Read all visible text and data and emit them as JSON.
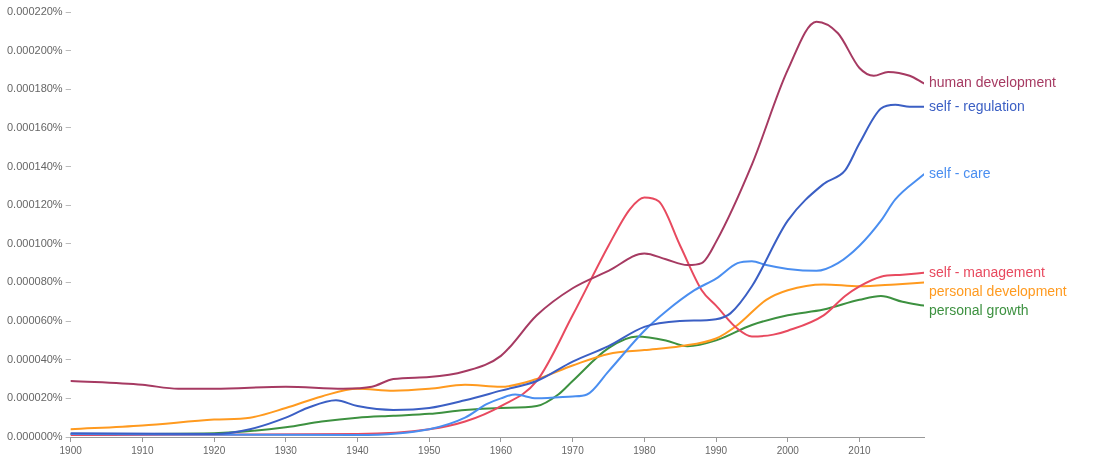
{
  "chart_data": {
    "type": "line",
    "xlim": [
      1900,
      2019
    ],
    "xticks": [
      1900,
      1910,
      1920,
      1930,
      1940,
      1950,
      1960,
      1970,
      1980,
      1990,
      2000,
      2010
    ],
    "ylim": [
      0,
      0.00022
    ],
    "yticks": [
      {
        "value": 0,
        "label": "0.000000%"
      },
      {
        "value": 2e-05,
        "label": "0.000020%"
      },
      {
        "value": 4e-05,
        "label": "0.000040%"
      },
      {
        "value": 6e-05,
        "label": "0.000060%"
      },
      {
        "value": 8e-05,
        "label": "0.000080%"
      },
      {
        "value": 0.0001,
        "label": "0.000100%"
      },
      {
        "value": 0.00012,
        "label": "0.000120%"
      },
      {
        "value": 0.00014,
        "label": "0.000140%"
      },
      {
        "value": 0.00016,
        "label": "0.000160%"
      },
      {
        "value": 0.00018,
        "label": "0.000180%"
      },
      {
        "value": 0.0002,
        "label": "0.000200%"
      },
      {
        "value": 0.00022,
        "label": "0.000220%"
      }
    ],
    "grid": false,
    "marker": "none",
    "line_style": "solid",
    "series": [
      {
        "name": "human development",
        "color": "#a63a62",
        "x": [
          1900,
          1910,
          1915,
          1920,
          1930,
          1938,
          1942,
          1945,
          1950,
          1955,
          1960,
          1965,
          1970,
          1975,
          1980,
          1983,
          1986,
          1988,
          1990,
          1995,
          2000,
          2004,
          2007,
          2010,
          2012,
          2014,
          2017,
          2019
        ],
        "values": [
          2.9e-05,
          2.7e-05,
          2.5e-05,
          2.5e-05,
          2.6e-05,
          2.5e-05,
          2.6e-05,
          3e-05,
          3.1e-05,
          3.4e-05,
          4.2e-05,
          6.3e-05,
          7.7e-05,
          8.6e-05,
          9.5e-05,
          9.2e-05,
          8.9e-05,
          9e-05,
          0.000101,
          0.000141,
          0.00019,
          0.000215,
          0.000209,
          0.000191,
          0.000187,
          0.000189,
          0.000187,
          0.000183
        ]
      },
      {
        "name": "self - regulation",
        "color": "#3b5fc4",
        "x": [
          1900,
          1920,
          1925,
          1930,
          1933,
          1937,
          1940,
          1945,
          1950,
          1955,
          1960,
          1965,
          1970,
          1975,
          1980,
          1985,
          1990,
          1992,
          1995,
          2000,
          2005,
          2008,
          2010,
          2013,
          2015,
          2017,
          2019
        ],
        "values": [
          2e-06,
          1.5e-06,
          4e-06,
          1e-05,
          1.5e-05,
          1.9e-05,
          1.6e-05,
          1.4e-05,
          1.5e-05,
          1.9e-05,
          2.4e-05,
          2.9e-05,
          3.9e-05,
          4.7e-05,
          5.7e-05,
          6e-05,
          6.1e-05,
          6.4e-05,
          7.8e-05,
          0.000112,
          0.000131,
          0.000138,
          0.000152,
          0.00017,
          0.000172,
          0.000171,
          0.000171
        ]
      },
      {
        "name": "self - care",
        "color": "#4a8ef0",
        "x": [
          1900,
          1940,
          1950,
          1955,
          1958,
          1960,
          1962,
          1965,
          1970,
          1972,
          1975,
          1980,
          1983,
          1987,
          1990,
          1993,
          1995,
          1997,
          2000,
          2004,
          2007,
          2010,
          2013,
          2015,
          2019
        ],
        "values": [
          1.5e-06,
          1e-06,
          4e-06,
          1e-05,
          1.7e-05,
          2e-05,
          2.2e-05,
          2e-05,
          2.1e-05,
          2.2e-05,
          3.4e-05,
          5.5e-05,
          6.5e-05,
          7.6e-05,
          8.2e-05,
          9e-05,
          9.1e-05,
          8.9e-05,
          8.7e-05,
          8.6e-05,
          9e-05,
          9.9e-05,
          0.000112,
          0.000123,
          0.000136
        ]
      },
      {
        "name": "self - management",
        "color": "#e84a5f",
        "x": [
          1900,
          1940,
          1950,
          1955,
          1960,
          1965,
          1970,
          1975,
          1978,
          1980,
          1982,
          1985,
          1988,
          1990,
          1993,
          1995,
          1998,
          2000,
          2005,
          2008,
          2010,
          2013,
          2016,
          2019
        ],
        "values": [
          1e-06,
          1.5e-06,
          4e-06,
          8e-06,
          1.6e-05,
          2.9e-05,
          6.3e-05,
          9.9e-05,
          0.000118,
          0.000124,
          0.000122,
          9.9e-05,
          7.6e-05,
          6.8e-05,
          5.6e-05,
          5.2e-05,
          5.3e-05,
          5.5e-05,
          6.3e-05,
          7.3e-05,
          7.8e-05,
          8.3e-05,
          8.4e-05,
          8.5e-05
        ]
      },
      {
        "name": "personal development",
        "color": "#ff9a1f",
        "x": [
          1900,
          1910,
          1920,
          1925,
          1930,
          1935,
          1940,
          1945,
          1950,
          1955,
          1960,
          1965,
          1970,
          1975,
          1980,
          1985,
          1990,
          1993,
          1997,
          2000,
          2005,
          2010,
          2015,
          2019
        ],
        "values": [
          4e-06,
          6e-06,
          9e-06,
          1e-05,
          1.5e-05,
          2.1e-05,
          2.5e-05,
          2.4e-05,
          2.5e-05,
          2.7e-05,
          2.6e-05,
          3e-05,
          3.7e-05,
          4.3e-05,
          4.5e-05,
          4.7e-05,
          5.1e-05,
          5.8e-05,
          7.1e-05,
          7.6e-05,
          7.9e-05,
          7.8e-05,
          7.9e-05,
          8e-05
        ]
      },
      {
        "name": "personal growth",
        "color": "#3d9140",
        "x": [
          1900,
          1920,
          1930,
          1935,
          1940,
          1945,
          1950,
          1955,
          1960,
          1965,
          1968,
          1970,
          1975,
          1979,
          1983,
          1986,
          1990,
          1995,
          2000,
          2005,
          2010,
          2013,
          2016,
          2019
        ],
        "values": [
          1.5e-06,
          2e-06,
          5e-06,
          8e-06,
          1e-05,
          1.1e-05,
          1.2e-05,
          1.4e-05,
          1.5e-05,
          1.6e-05,
          2.2e-05,
          2.9e-05,
          4.6e-05,
          5.2e-05,
          5e-05,
          4.7e-05,
          5e-05,
          5.8e-05,
          6.3e-05,
          6.6e-05,
          7.1e-05,
          7.3e-05,
          7e-05,
          6.8e-05
        ]
      }
    ]
  }
}
